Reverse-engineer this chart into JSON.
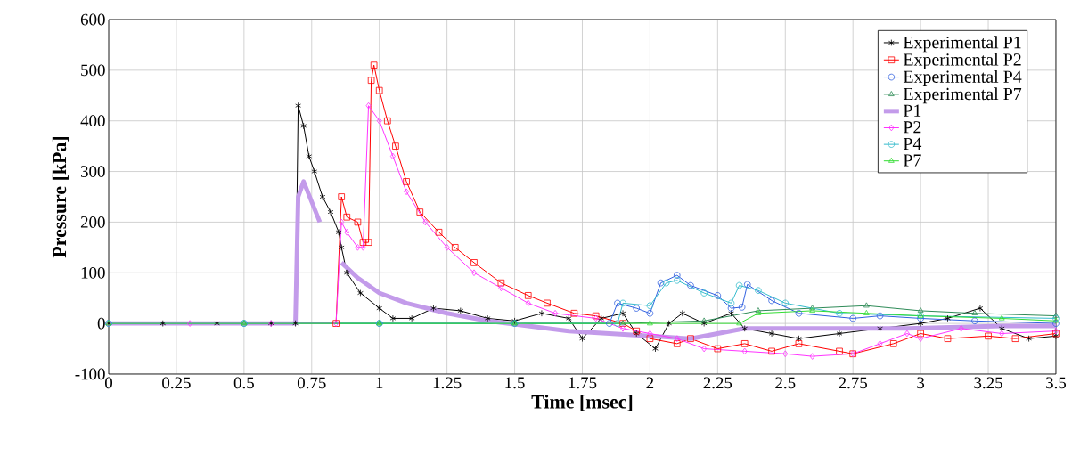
{
  "chart_data": {
    "type": "line",
    "xlabel": "Time [msec]",
    "ylabel": "Pressure [kPa]",
    "xlim": [
      0,
      3.5
    ],
    "ylim": [
      -100,
      600
    ],
    "xticks": [
      0,
      0.25,
      0.5,
      0.75,
      1,
      1.25,
      1.5,
      1.75,
      2,
      2.25,
      2.5,
      2.75,
      3,
      3.25,
      3.5
    ],
    "yticks": [
      -100,
      0,
      100,
      200,
      300,
      400,
      500,
      600
    ],
    "grid": true,
    "legend": "top right",
    "series": [
      {
        "name": "Experimental P1",
        "color": "#000000",
        "marker": "cross",
        "x": [
          0,
          0.2,
          0.4,
          0.6,
          0.69,
          0.7,
          0.72,
          0.74,
          0.76,
          0.79,
          0.82,
          0.85,
          0.86,
          0.88,
          0.93,
          1.0,
          1.05,
          1.12,
          1.2,
          1.3,
          1.4,
          1.5,
          1.6,
          1.7,
          1.75,
          1.82,
          1.9,
          1.95,
          2.02,
          2.07,
          2.12,
          2.2,
          2.3,
          2.35,
          2.45,
          2.55,
          2.7,
          2.85,
          3.0,
          3.1,
          3.22,
          3.3,
          3.4,
          3.5
        ],
        "values": [
          0,
          0,
          0,
          0,
          0,
          430,
          390,
          330,
          300,
          250,
          220,
          180,
          150,
          100,
          60,
          30,
          10,
          10,
          30,
          25,
          10,
          5,
          20,
          10,
          -30,
          10,
          20,
          -20,
          -50,
          0,
          20,
          0,
          20,
          -10,
          -20,
          -30,
          -20,
          -10,
          0,
          10,
          30,
          -10,
          -30,
          -25
        ]
      },
      {
        "name": "Experimental P2",
        "color": "#ff0000",
        "marker": "square",
        "x": [
          0.84,
          0.86,
          0.88,
          0.92,
          0.94,
          0.96,
          0.97,
          0.98,
          1.0,
          1.03,
          1.06,
          1.1,
          1.15,
          1.22,
          1.28,
          1.35,
          1.45,
          1.55,
          1.62,
          1.72,
          1.8,
          1.9,
          1.95,
          2.0,
          2.1,
          2.15,
          2.25,
          2.35,
          2.45,
          2.55,
          2.7,
          2.75,
          2.9,
          3.0,
          3.1,
          3.25,
          3.35,
          3.5
        ],
        "values": [
          0,
          250,
          210,
          200,
          160,
          160,
          480,
          510,
          460,
          400,
          350,
          280,
          220,
          180,
          150,
          120,
          80,
          55,
          40,
          20,
          15,
          0,
          -15,
          -30,
          -40,
          -30,
          -50,
          -40,
          -55,
          -40,
          -55,
          -60,
          -40,
          -20,
          -30,
          -25,
          -30,
          -20
        ]
      },
      {
        "name": "Experimental P4",
        "color": "#3060e0",
        "marker": "circle",
        "x": [
          0,
          0.5,
          1.0,
          1.5,
          1.85,
          1.88,
          1.95,
          2.0,
          2.04,
          2.1,
          2.15,
          2.25,
          2.3,
          2.34,
          2.36,
          2.45,
          2.55,
          2.75,
          2.85,
          3.0,
          3.2,
          3.5
        ],
        "values": [
          0,
          0,
          0,
          0,
          0,
          40,
          30,
          20,
          80,
          95,
          75,
          55,
          30,
          32,
          77,
          45,
          20,
          10,
          15,
          10,
          5,
          0
        ]
      },
      {
        "name": "Experimental P7",
        "color": "#2e8b57",
        "marker": "triangle",
        "x": [
          0,
          0.5,
          1.0,
          1.5,
          1.9,
          2.2,
          2.4,
          2.6,
          2.8,
          3.0,
          3.2,
          3.5
        ],
        "values": [
          0,
          0,
          0,
          0,
          0,
          5,
          25,
          30,
          35,
          25,
          20,
          15
        ]
      },
      {
        "name": "P1",
        "color": "#c39bea",
        "marker": "none",
        "x": [
          0,
          0.3,
          0.6,
          0.69,
          0.7,
          0.72,
          0.78,
          0.8,
          0.86,
          0.92,
          1.0,
          1.1,
          1.25,
          1.4,
          1.55,
          1.7,
          1.85,
          2.0,
          2.15,
          2.35,
          2.65,
          2.95,
          3.3,
          3.5
        ],
        "values": [
          0,
          0,
          0,
          0,
          250,
          280,
          200,
          null,
          120,
          90,
          60,
          40,
          20,
          5,
          -5,
          -15,
          -20,
          -25,
          -30,
          -10,
          -10,
          -10,
          -5,
          -5
        ]
      },
      {
        "name": "P2",
        "color": "#ff33ff",
        "marker": "diamond",
        "x": [
          0,
          0.3,
          0.6,
          0.84,
          0.86,
          0.88,
          0.92,
          0.94,
          0.96,
          1.0,
          1.05,
          1.1,
          1.17,
          1.25,
          1.35,
          1.45,
          1.55,
          1.65,
          1.8,
          1.9,
          2.0,
          2.1,
          2.2,
          2.35,
          2.5,
          2.6,
          2.75,
          2.85,
          2.95,
          3.0,
          3.15,
          3.3,
          3.5
        ],
        "values": [
          0,
          0,
          0,
          0,
          200,
          180,
          150,
          150,
          430,
          400,
          330,
          260,
          200,
          150,
          100,
          70,
          40,
          20,
          10,
          -10,
          -20,
          -30,
          -50,
          -55,
          -60,
          -65,
          -60,
          -40,
          -20,
          -30,
          -10,
          -20,
          -15
        ]
      },
      {
        "name": "P4",
        "color": "#33bbcc",
        "marker": "circle",
        "x": [
          0,
          0.5,
          1.0,
          1.5,
          1.88,
          1.9,
          2.0,
          2.06,
          2.1,
          2.2,
          2.3,
          2.33,
          2.4,
          2.5,
          2.7,
          3.0,
          3.5
        ],
        "values": [
          0,
          0,
          0,
          0,
          0,
          40,
          35,
          80,
          85,
          60,
          40,
          75,
          65,
          40,
          20,
          15,
          10
        ]
      },
      {
        "name": "P7",
        "color": "#33dd33",
        "marker": "triangle",
        "x": [
          0,
          0.5,
          1.0,
          1.5,
          2.0,
          2.33,
          2.4,
          2.6,
          2.8,
          3.0,
          3.3,
          3.5
        ],
        "values": [
          0,
          0,
          0,
          0,
          0,
          0,
          20,
          25,
          20,
          15,
          10,
          5
        ]
      }
    ]
  }
}
